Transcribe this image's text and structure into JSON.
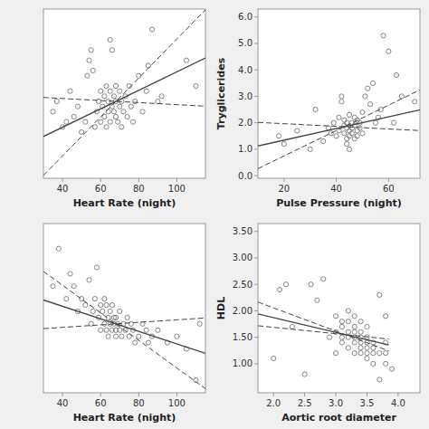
{
  "chart_data": [
    {
      "type": "scatter",
      "xlabel": "Heart Rate (night)",
      "xlim": [
        30,
        115
      ],
      "ylim": [
        0.5,
        3.8
      ],
      "xticks": [
        40,
        60,
        80,
        100
      ],
      "tick_labels": "x",
      "series": [
        {
          "type": "scatter",
          "marker": "circle",
          "color": "#777777",
          "x": [
            35,
            37,
            40,
            42,
            44,
            46,
            48,
            50,
            52,
            53,
            54,
            55,
            56,
            57,
            58,
            59,
            60,
            60,
            61,
            62,
            62,
            63,
            63,
            64,
            64,
            65,
            65,
            65,
            66,
            66,
            67,
            67,
            68,
            68,
            68,
            69,
            70,
            70,
            71,
            71,
            72,
            73,
            74,
            75,
            76,
            77,
            78,
            80,
            82,
            84,
            85,
            87,
            90,
            92,
            105,
            110
          ],
          "values": [
            1.8,
            2.0,
            1.5,
            1.6,
            2.2,
            1.7,
            1.9,
            1.4,
            1.6,
            2.5,
            2.8,
            3.0,
            2.6,
            1.5,
            1.8,
            2.0,
            1.6,
            2.2,
            1.9,
            2.1,
            1.7,
            2.3,
            1.5,
            2.0,
            1.8,
            1.6,
            2.2,
            3.2,
            3.0,
            1.9,
            2.1,
            1.8,
            1.7,
            2.0,
            2.3,
            1.6,
            1.9,
            2.2,
            1.5,
            2.0,
            1.8,
            2.1,
            1.7,
            2.3,
            1.9,
            1.6,
            2.0,
            2.5,
            1.8,
            2.2,
            2.7,
            3.4,
            2.0,
            2.1,
            2.8,
            2.3
          ]
        },
        {
          "type": "line",
          "line_style": "solid",
          "color": "#444444",
          "x": [
            30,
            115
          ],
          "values": [
            1.316,
            2.846
          ]
        },
        {
          "type": "line",
          "line_style": "dashed",
          "color": "#444444",
          "x": [
            30,
            115
          ],
          "values": [
            0.556,
            3.786
          ]
        },
        {
          "type": "line",
          "line_style": "dashed",
          "color": "#444444",
          "x": [
            30,
            115
          ],
          "values": [
            2.076,
            1.906
          ]
        }
      ]
    },
    {
      "type": "scatter",
      "xlabel": "Pulse Pressure (night)",
      "ylabel": "Tryglicerides",
      "xlim": [
        10,
        72
      ],
      "ylim": [
        -0.1,
        6.3
      ],
      "xticks": [
        20,
        40,
        60
      ],
      "yticks": [
        {
          "value": 0.0,
          "label": "0.0"
        },
        {
          "value": 1.0,
          "label": "1.0"
        },
        {
          "value": 2.0,
          "label": "2.0"
        },
        {
          "value": 3.0,
          "label": "3.0"
        },
        {
          "value": 4.0,
          "label": "4.0"
        },
        {
          "value": 5.0,
          "label": "5.0"
        },
        {
          "value": 6.0,
          "label": "6.0"
        }
      ],
      "series": [
        {
          "type": "scatter",
          "marker": "circle",
          "color": "#777777",
          "x": [
            18,
            20,
            25,
            30,
            32,
            35,
            37,
            38,
            39,
            40,
            41,
            41,
            42,
            42,
            43,
            43,
            43,
            44,
            44,
            44,
            44,
            45,
            45,
            45,
            45,
            46,
            46,
            46,
            47,
            47,
            47,
            48,
            48,
            48,
            49,
            49,
            50,
            50,
            51,
            52,
            53,
            54,
            55,
            56,
            57,
            58,
            60,
            62,
            63,
            65,
            70
          ],
          "values": [
            1.5,
            1.2,
            1.7,
            1.0,
            2.5,
            1.3,
            1.8,
            1.6,
            2.0,
            1.5,
            2.2,
            1.7,
            3.0,
            2.8,
            1.9,
            2.1,
            1.6,
            1.4,
            2.0,
            1.8,
            1.2,
            2.3,
            1.7,
            1.5,
            1.0,
            2.0,
            1.8,
            1.6,
            2.2,
            1.9,
            1.4,
            1.7,
            2.1,
            1.5,
            2.0,
            1.8,
            2.4,
            1.6,
            3.0,
            3.3,
            2.7,
            3.5,
            2.0,
            2.2,
            2.5,
            5.3,
            4.7,
            2.0,
            3.8,
            3.0,
            2.8
          ]
        },
        {
          "type": "line",
          "line_style": "solid",
          "color": "#444444",
          "x": [
            10,
            72
          ],
          "values": [
            1.124,
            2.488
          ]
        },
        {
          "type": "line",
          "line_style": "dashed",
          "color": "#444444",
          "x": [
            10,
            72
          ],
          "values": [
            0.266,
            3.242
          ]
        },
        {
          "type": "line",
          "line_style": "dashed",
          "color": "#444444",
          "x": [
            10,
            72
          ],
          "values": [
            2.015,
            1.705
          ]
        }
      ]
    },
    {
      "type": "scatter",
      "xlabel": "Heart Rate (night)",
      "xlim": [
        30,
        115
      ],
      "ylim": [
        0.5,
        3.2
      ],
      "xticks": [
        40,
        60,
        80,
        100
      ],
      "tick_labels": "x",
      "series": [
        {
          "type": "scatter",
          "marker": "circle",
          "color": "#777777",
          "x": [
            35,
            38,
            42,
            44,
            46,
            48,
            50,
            52,
            54,
            55,
            56,
            57,
            58,
            59,
            60,
            60,
            61,
            62,
            62,
            63,
            63,
            64,
            64,
            65,
            65,
            66,
            66,
            67,
            67,
            68,
            68,
            68,
            69,
            70,
            70,
            71,
            72,
            73,
            74,
            75,
            76,
            77,
            78,
            80,
            82,
            84,
            85,
            87,
            90,
            95,
            100,
            105,
            110,
            112
          ],
          "values": [
            2.2,
            2.8,
            2.0,
            2.4,
            2.2,
            1.8,
            2.0,
            1.9,
            2.3,
            1.6,
            1.8,
            2.0,
            2.5,
            1.7,
            1.9,
            1.5,
            1.8,
            2.0,
            1.6,
            1.9,
            1.5,
            1.7,
            1.4,
            1.8,
            1.6,
            1.5,
            1.9,
            1.7,
            1.6,
            1.5,
            1.4,
            1.7,
            1.6,
            1.8,
            1.5,
            1.4,
            1.6,
            1.5,
            1.7,
            1.4,
            1.6,
            1.5,
            1.3,
            1.4,
            1.6,
            1.5,
            1.3,
            1.4,
            1.5,
            1.3,
            1.4,
            1.2,
            0.7,
            1.6
          ]
        },
        {
          "type": "line",
          "line_style": "solid",
          "color": "#444444",
          "x": [
            30,
            115
          ],
          "values": [
            1.98,
            1.13
          ]
        },
        {
          "type": "line",
          "line_style": "dashed",
          "color": "#444444",
          "x": [
            30,
            115
          ],
          "values": [
            1.524,
            1.694
          ]
        },
        {
          "type": "line",
          "line_style": "dashed",
          "color": "#444444",
          "x": [
            30,
            115
          ],
          "values": [
            2.436,
            0.566
          ]
        }
      ]
    },
    {
      "type": "scatter",
      "xlabel": "Aortic root diameter",
      "ylabel": "HDL",
      "xlim": [
        1.75,
        4.35
      ],
      "ylim": [
        0.45,
        3.65
      ],
      "xticks": [
        {
          "value": 2.0,
          "label": "2.0"
        },
        {
          "value": 2.5,
          "label": "2.5"
        },
        {
          "value": 3.0,
          "label": "3.0"
        },
        {
          "value": 3.5,
          "label": "3.5"
        },
        {
          "value": 4.0,
          "label": "4.0"
        }
      ],
      "yticks": [
        {
          "value": 1.0,
          "label": "1.00"
        },
        {
          "value": 1.5,
          "label": "1.50"
        },
        {
          "value": 2.0,
          "label": "2.00"
        },
        {
          "value": 2.5,
          "label": "2.50"
        },
        {
          "value": 3.0,
          "label": "3.00"
        },
        {
          "value": 3.5,
          "label": "3.50"
        }
      ],
      "series": [
        {
          "type": "scatter",
          "marker": "circle",
          "color": "#777777",
          "x": [
            2.0,
            2.1,
            2.2,
            2.3,
            2.5,
            2.6,
            2.7,
            2.8,
            2.9,
            3.0,
            3.0,
            3.0,
            3.1,
            3.1,
            3.1,
            3.1,
            3.2,
            3.2,
            3.2,
            3.2,
            3.2,
            3.3,
            3.3,
            3.3,
            3.3,
            3.3,
            3.3,
            3.4,
            3.4,
            3.4,
            3.4,
            3.4,
            3.4,
            3.5,
            3.5,
            3.5,
            3.5,
            3.5,
            3.5,
            3.6,
            3.6,
            3.6,
            3.6,
            3.7,
            3.7,
            3.7,
            3.8,
            3.8,
            3.8,
            3.8,
            3.9
          ],
          "values": [
            1.1,
            2.4,
            2.5,
            1.7,
            0.8,
            2.5,
            2.2,
            2.6,
            1.5,
            1.2,
            1.6,
            1.9,
            1.5,
            1.7,
            1.4,
            1.8,
            1.5,
            1.6,
            1.3,
            2.0,
            1.8,
            1.4,
            1.5,
            1.7,
            1.2,
            1.9,
            1.6,
            1.3,
            1.5,
            1.6,
            1.4,
            1.2,
            1.8,
            1.3,
            1.4,
            1.2,
            1.5,
            1.1,
            1.7,
            1.3,
            1.4,
            1.2,
            1.0,
            2.3,
            1.2,
            0.7,
            1.4,
            1.0,
            1.2,
            1.9,
            0.9
          ]
        },
        {
          "type": "line",
          "line_style": "solid",
          "color": "#444444",
          "x": [
            1.75,
            3.85
          ],
          "values": [
            1.942,
            1.354
          ]
        },
        {
          "type": "line",
          "line_style": "dashed",
          "color": "#444444",
          "x": [
            1.75,
            3.85
          ],
          "values": [
            1.718,
            1.466
          ]
        },
        {
          "type": "line",
          "line_style": "dashed",
          "color": "#444444",
          "x": [
            1.75,
            3.85
          ],
          "values": [
            2.166,
            1.242
          ]
        }
      ]
    }
  ]
}
